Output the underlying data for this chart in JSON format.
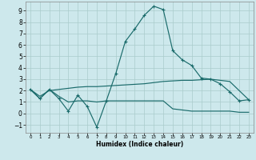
{
  "xlabel": "Humidex (Indice chaleur)",
  "xlim": [
    -0.5,
    23.5
  ],
  "ylim": [
    -1.7,
    9.8
  ],
  "yticks": [
    -1,
    0,
    1,
    2,
    3,
    4,
    5,
    6,
    7,
    8,
    9
  ],
  "xticks": [
    0,
    1,
    2,
    3,
    4,
    5,
    6,
    7,
    8,
    9,
    10,
    11,
    12,
    13,
    14,
    15,
    16,
    17,
    18,
    19,
    20,
    21,
    22,
    23
  ],
  "bg_color": "#cde8ec",
  "grid_color": "#aacccc",
  "line_color": "#1a6b6b",
  "line1_x": [
    0,
    1,
    2,
    3,
    4,
    5,
    6,
    7,
    8,
    9,
    10,
    11,
    12,
    13,
    14,
    15,
    16,
    17,
    18,
    19,
    20,
    21,
    22,
    23
  ],
  "line1_y": [
    2.1,
    1.3,
    2.1,
    1.3,
    0.2,
    1.6,
    0.6,
    -1.2,
    1.1,
    3.5,
    6.3,
    7.4,
    8.6,
    9.4,
    9.1,
    5.5,
    4.7,
    4.2,
    3.1,
    3.0,
    2.6,
    1.9,
    1.1,
    1.2
  ],
  "line2_x": [
    0,
    1,
    2,
    3,
    4,
    5,
    6,
    7,
    8,
    9,
    10,
    11,
    12,
    13,
    14,
    15,
    16,
    17,
    18,
    19,
    20,
    21,
    22,
    23
  ],
  "line2_y": [
    2.1,
    1.5,
    2.0,
    2.1,
    2.2,
    2.3,
    2.35,
    2.35,
    2.4,
    2.45,
    2.5,
    2.55,
    2.6,
    2.7,
    2.8,
    2.85,
    2.9,
    2.9,
    2.95,
    3.0,
    2.9,
    2.8,
    2.0,
    1.2
  ],
  "line3_x": [
    0,
    1,
    2,
    3,
    4,
    5,
    6,
    7,
    8,
    9,
    10,
    11,
    12,
    13,
    14,
    15,
    16,
    17,
    18,
    19,
    20,
    21,
    22,
    23
  ],
  "line3_y": [
    2.1,
    1.3,
    2.1,
    1.5,
    1.0,
    1.1,
    1.1,
    1.0,
    1.1,
    1.1,
    1.1,
    1.1,
    1.1,
    1.1,
    1.1,
    0.4,
    0.3,
    0.2,
    0.2,
    0.2,
    0.2,
    0.2,
    0.1,
    0.1
  ]
}
